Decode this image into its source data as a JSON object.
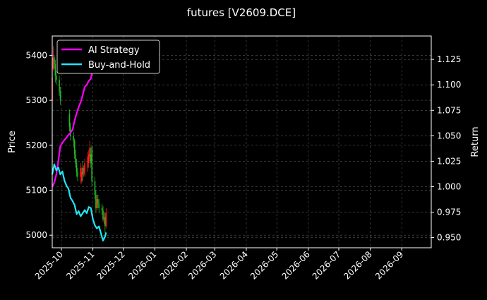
{
  "chart_data": {
    "type": "line",
    "title": "futures [V2609.DCE]",
    "ylabel_left": "Price",
    "ylabel_right": "Return",
    "grid": true,
    "legend_position": "top-left",
    "x_ticks": [
      "2025-10",
      "2025-11",
      "2025-12",
      "2026-01",
      "2026-02",
      "2026-03",
      "2026-04",
      "2026-05",
      "2026-06",
      "2026-07",
      "2026-08",
      "2026-09"
    ],
    "x_range": [
      "2025-09-22",
      "2026-09-30"
    ],
    "y_left_range": [
      4972,
      5443
    ],
    "y_left_ticks": [
      "5000",
      "5100",
      "5200",
      "5300",
      "5400"
    ],
    "y_right_range": [
      0.94,
      1.148
    ],
    "y_right_ticks": [
      "0.950",
      "0.975",
      "1.000",
      "1.025",
      "1.050",
      "1.075",
      "1.100",
      "1.125"
    ],
    "colors": {
      "ai": "#ff00ff",
      "bh": "#22e5f5",
      "up": "#ff2020",
      "down": "#22bb22",
      "grid": "#555555"
    },
    "series": [
      {
        "name": "AI Strategy",
        "x": [
          "2025-09-22",
          "2025-09-24",
          "2025-09-26",
          "2025-09-28",
          "2025-09-30",
          "2025-10-02",
          "2025-10-04",
          "2025-10-06",
          "2025-10-08",
          "2025-10-10",
          "2025-10-12",
          "2025-10-14",
          "2025-10-16",
          "2025-10-18",
          "2025-10-20",
          "2025-10-22",
          "2025-10-24",
          "2025-10-26",
          "2025-10-28",
          "2025-10-30",
          "2025-11-01",
          "2025-11-03",
          "2025-11-05",
          "2025-11-07",
          "2025-11-09",
          "2025-11-11"
        ],
        "values": [
          1.0,
          1.004,
          1.012,
          1.025,
          1.04,
          1.043,
          1.046,
          1.048,
          1.051,
          1.053,
          1.056,
          1.065,
          1.072,
          1.078,
          1.083,
          1.09,
          1.098,
          1.1,
          1.104,
          1.106,
          1.116,
          1.124,
          1.133,
          1.136,
          1.14,
          1.143
        ]
      },
      {
        "name": "Buy-and-Hold",
        "x": [
          "2025-09-22",
          "2025-09-24",
          "2025-09-26",
          "2025-09-28",
          "2025-09-30",
          "2025-10-02",
          "2025-10-04",
          "2025-10-06",
          "2025-10-08",
          "2025-10-10",
          "2025-10-12",
          "2025-10-14",
          "2025-10-16",
          "2025-10-18",
          "2025-10-20",
          "2025-10-22",
          "2025-10-24",
          "2025-10-26",
          "2025-10-28",
          "2025-10-30",
          "2025-11-01",
          "2025-11-03",
          "2025-11-05",
          "2025-11-07",
          "2025-11-09",
          "2025-11-11",
          "2025-11-13",
          "2025-11-14"
        ],
        "values": [
          1.012,
          1.022,
          1.016,
          1.019,
          1.012,
          1.015,
          1.006,
          1.001,
          0.998,
          0.989,
          0.986,
          0.982,
          0.973,
          0.976,
          0.971,
          0.974,
          0.977,
          0.974,
          0.98,
          0.979,
          0.968,
          0.962,
          0.959,
          0.961,
          0.954,
          0.947,
          0.951,
          0.955
        ]
      }
    ],
    "candles": {
      "dates": [
        "2025-09-22",
        "2025-09-23",
        "2025-09-24",
        "2025-09-25",
        "2025-09-26",
        "2025-09-29",
        "2025-09-30",
        "2025-10-09",
        "2025-10-10",
        "2025-10-13",
        "2025-10-14",
        "2025-10-15",
        "2025-10-16",
        "2025-10-17",
        "2025-10-20",
        "2025-10-21",
        "2025-10-22",
        "2025-10-23",
        "2025-10-24",
        "2025-10-27",
        "2025-10-28",
        "2025-10-29",
        "2025-10-30",
        "2025-10-31",
        "2025-11-03",
        "2025-11-04",
        "2025-11-05",
        "2025-11-06",
        "2025-11-07",
        "2025-11-10",
        "2025-11-11",
        "2025-11-12",
        "2025-11-13",
        "2025-11-14"
      ],
      "open": [
        5300,
        5370,
        5395,
        5380,
        5355,
        5345,
        5320,
        5270,
        5240,
        5220,
        5210,
        5180,
        5160,
        5140,
        5130,
        5120,
        5150,
        5140,
        5135,
        5150,
        5160,
        5175,
        5180,
        5195,
        5120,
        5090,
        5060,
        5080,
        5070,
        5060,
        5055,
        5035,
        5040,
        5020
      ],
      "close": [
        5350,
        5395,
        5380,
        5355,
        5345,
        5320,
        5300,
        5240,
        5220,
        5210,
        5180,
        5160,
        5140,
        5130,
        5150,
        5140,
        5135,
        5150,
        5160,
        5175,
        5180,
        5195,
        5160,
        5120,
        5090,
        5060,
        5080,
        5070,
        5060,
        5055,
        5035,
        5040,
        5020,
        5050
      ],
      "high": [
        5360,
        5420,
        5400,
        5390,
        5365,
        5355,
        5330,
        5280,
        5250,
        5230,
        5215,
        5190,
        5170,
        5150,
        5160,
        5150,
        5165,
        5155,
        5170,
        5185,
        5190,
        5210,
        5195,
        5200,
        5130,
        5100,
        5090,
        5090,
        5080,
        5070,
        5065,
        5050,
        5050,
        5060
      ],
      "low": [
        5290,
        5365,
        5370,
        5340,
        5335,
        5310,
        5290,
        5230,
        5210,
        5195,
        5170,
        5150,
        5130,
        5120,
        5115,
        5115,
        5120,
        5130,
        5130,
        5140,
        5150,
        5165,
        5150,
        5110,
        5080,
        5050,
        5055,
        5060,
        5050,
        5045,
        5030,
        5025,
        5005,
        5015
      ]
    }
  }
}
